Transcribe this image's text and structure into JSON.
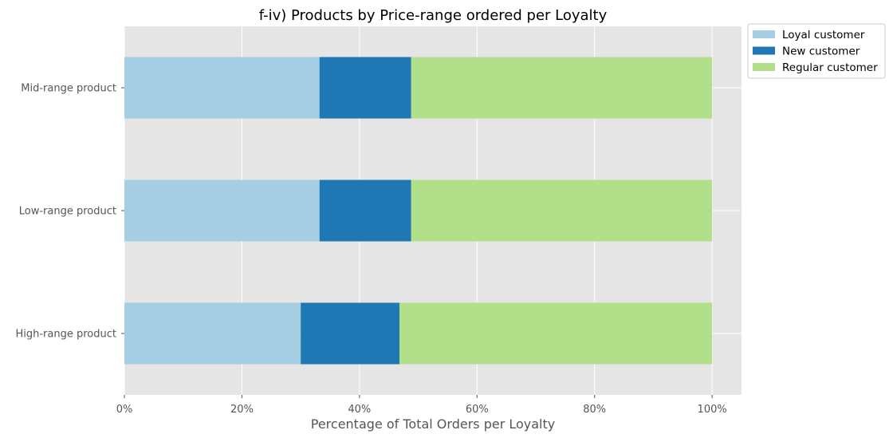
{
  "chart_data": {
    "type": "bar",
    "orientation": "horizontal",
    "stacked": true,
    "title": "f-iv) Products by Price-range ordered per Loyalty",
    "xlabel": "Percentage of Total Orders per Loyalty",
    "ylabel": "",
    "categories": [
      "High-range product",
      "Low-range product",
      "Mid-range product"
    ],
    "series": [
      {
        "name": "Loyal customer",
        "color": "#a6cee3",
        "values": [
          30.0,
          33.2,
          33.2
        ]
      },
      {
        "name": "New customer",
        "color": "#1f78b4",
        "values": [
          16.8,
          15.6,
          15.6
        ]
      },
      {
        "name": "Regular customer",
        "color": "#b2df8a",
        "values": [
          53.2,
          51.2,
          51.2
        ]
      }
    ],
    "xlim": [
      0,
      105
    ],
    "xticks": [
      0,
      20,
      40,
      60,
      80,
      100
    ],
    "xtick_labels": [
      "0%",
      "20%",
      "40%",
      "60%",
      "80%",
      "100%"
    ],
    "grid": true,
    "legend_position": "upper-right outside"
  }
}
